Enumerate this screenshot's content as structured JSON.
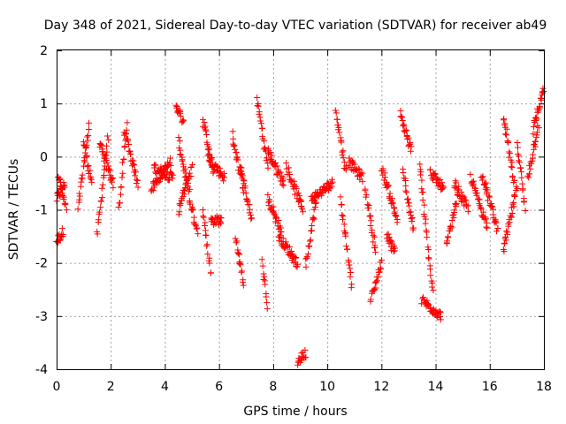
{
  "chart_data": {
    "type": "scatter",
    "title": "Day 348 of 2021, Sidereal Day-to-day VTEC variation (SDTVAR) for receiver ab49",
    "xlabel": "GPS time / hours",
    "ylabel": "SDTVAR / TECUs",
    "xlim": [
      0,
      18
    ],
    "ylim": [
      -4,
      2
    ],
    "xticks": [
      0,
      2,
      4,
      6,
      8,
      10,
      12,
      14,
      16,
      18
    ],
    "yticks": [
      -4,
      -3,
      -2,
      -1,
      0,
      1,
      2
    ],
    "grid": true,
    "marker": "+",
    "color": "#ff0000",
    "segments": [
      {
        "x0": 0.0,
        "x1": 0.3,
        "y0": -0.8,
        "y1": -0.5
      },
      {
        "x0": 0.0,
        "x1": 0.25,
        "y0": -1.6,
        "y1": -1.4
      },
      {
        "x0": 0.05,
        "x1": 0.35,
        "y0": -0.3,
        "y1": -1.0
      },
      {
        "x0": 0.8,
        "x1": 1.2,
        "y0": -1.0,
        "y1": 0.6
      },
      {
        "x0": 1.0,
        "x1": 1.3,
        "y0": 0.3,
        "y1": -0.5
      },
      {
        "x0": 1.5,
        "x1": 1.9,
        "y0": -1.5,
        "y1": 0.4
      },
      {
        "x0": 1.6,
        "x1": 2.1,
        "y0": 0.2,
        "y1": -0.5
      },
      {
        "x0": 2.3,
        "x1": 2.6,
        "y0": -1.0,
        "y1": 0.6
      },
      {
        "x0": 2.5,
        "x1": 3.0,
        "y0": 0.5,
        "y1": -0.5
      },
      {
        "x0": 3.5,
        "x1": 4.2,
        "y0": -0.6,
        "y1": -0.1
      },
      {
        "x0": 3.6,
        "x1": 4.3,
        "y0": -0.2,
        "y1": -0.4
      },
      {
        "x0": 4.4,
        "x1": 4.7,
        "y0": 1.0,
        "y1": 0.6
      },
      {
        "x0": 4.5,
        "x1": 4.9,
        "y0": 0.3,
        "y1": -0.7
      },
      {
        "x0": 4.5,
        "x1": 5.0,
        "y0": -1.0,
        "y1": -0.2
      },
      {
        "x0": 4.9,
        "x1": 5.2,
        "y0": -0.8,
        "y1": -1.4
      },
      {
        "x0": 5.4,
        "x1": 5.8,
        "y0": 0.7,
        "y1": -0.3
      },
      {
        "x0": 5.4,
        "x1": 5.7,
        "y0": -1.0,
        "y1": -2.2
      },
      {
        "x0": 5.6,
        "x1": 6.2,
        "y0": 0.0,
        "y1": -0.4
      },
      {
        "x0": 5.7,
        "x1": 6.1,
        "y0": -1.2,
        "y1": -1.2
      },
      {
        "x0": 6.5,
        "x1": 6.9,
        "y0": 0.4,
        "y1": -0.6
      },
      {
        "x0": 6.6,
        "x1": 6.9,
        "y0": -1.5,
        "y1": -2.4
      },
      {
        "x0": 6.8,
        "x1": 7.2,
        "y0": -0.2,
        "y1": -1.2
      },
      {
        "x0": 7.4,
        "x1": 7.8,
        "y0": 1.1,
        "y1": -0.2
      },
      {
        "x0": 7.6,
        "x1": 7.8,
        "y0": -2.0,
        "y1": -2.8
      },
      {
        "x0": 7.8,
        "x1": 8.3,
        "y0": -0.8,
        "y1": -1.4
      },
      {
        "x0": 7.8,
        "x1": 8.4,
        "y0": 0.1,
        "y1": -0.5
      },
      {
        "x0": 8.2,
        "x1": 8.9,
        "y0": -1.5,
        "y1": -2.0
      },
      {
        "x0": 8.5,
        "x1": 9.1,
        "y0": -0.2,
        "y1": -1.0
      },
      {
        "x0": 8.9,
        "x1": 9.2,
        "y0": -3.85,
        "y1": -3.7
      },
      {
        "x0": 9.2,
        "x1": 9.6,
        "y0": -2.0,
        "y1": -0.8
      },
      {
        "x0": 9.4,
        "x1": 10.2,
        "y0": -0.8,
        "y1": -0.5
      },
      {
        "x0": 10.3,
        "x1": 10.7,
        "y0": 0.9,
        "y1": -0.3
      },
      {
        "x0": 10.5,
        "x1": 10.9,
        "y0": -0.8,
        "y1": -2.4
      },
      {
        "x0": 10.8,
        "x1": 11.3,
        "y0": -0.1,
        "y1": -0.4
      },
      {
        "x0": 11.4,
        "x1": 11.8,
        "y0": -0.6,
        "y1": -1.8
      },
      {
        "x0": 11.6,
        "x1": 12.0,
        "y0": -2.7,
        "y1": -2.0
      },
      {
        "x0": 12.0,
        "x1": 12.6,
        "y0": -0.2,
        "y1": -1.2
      },
      {
        "x0": 12.2,
        "x1": 12.5,
        "y0": -1.5,
        "y1": -1.8
      },
      {
        "x0": 12.7,
        "x1": 13.1,
        "y0": 0.8,
        "y1": 0.1
      },
      {
        "x0": 12.8,
        "x1": 13.2,
        "y0": -0.3,
        "y1": -1.4
      },
      {
        "x0": 13.4,
        "x1": 13.9,
        "y0": -0.1,
        "y1": -2.6
      },
      {
        "x0": 13.5,
        "x1": 14.2,
        "y0": -2.7,
        "y1": -3.0
      },
      {
        "x0": 13.8,
        "x1": 14.3,
        "y0": -0.3,
        "y1": -0.6
      },
      {
        "x0": 14.4,
        "x1": 14.8,
        "y0": -1.7,
        "y1": -0.8
      },
      {
        "x0": 14.7,
        "x1": 15.2,
        "y0": -0.5,
        "y1": -1.0
      },
      {
        "x0": 15.3,
        "x1": 15.9,
        "y0": -0.4,
        "y1": -1.3
      },
      {
        "x0": 15.7,
        "x1": 16.3,
        "y0": -0.3,
        "y1": -1.4
      },
      {
        "x0": 16.5,
        "x1": 16.9,
        "y0": 0.8,
        "y1": -0.5
      },
      {
        "x0": 16.5,
        "x1": 17.0,
        "y0": -1.8,
        "y1": -0.6
      },
      {
        "x0": 17.0,
        "x1": 17.3,
        "y0": 0.3,
        "y1": -1.0
      },
      {
        "x0": 17.4,
        "x1": 17.8,
        "y0": -0.4,
        "y1": 0.6
      },
      {
        "x0": 17.6,
        "x1": 18.0,
        "y0": 0.5,
        "y1": 1.3
      }
    ]
  }
}
